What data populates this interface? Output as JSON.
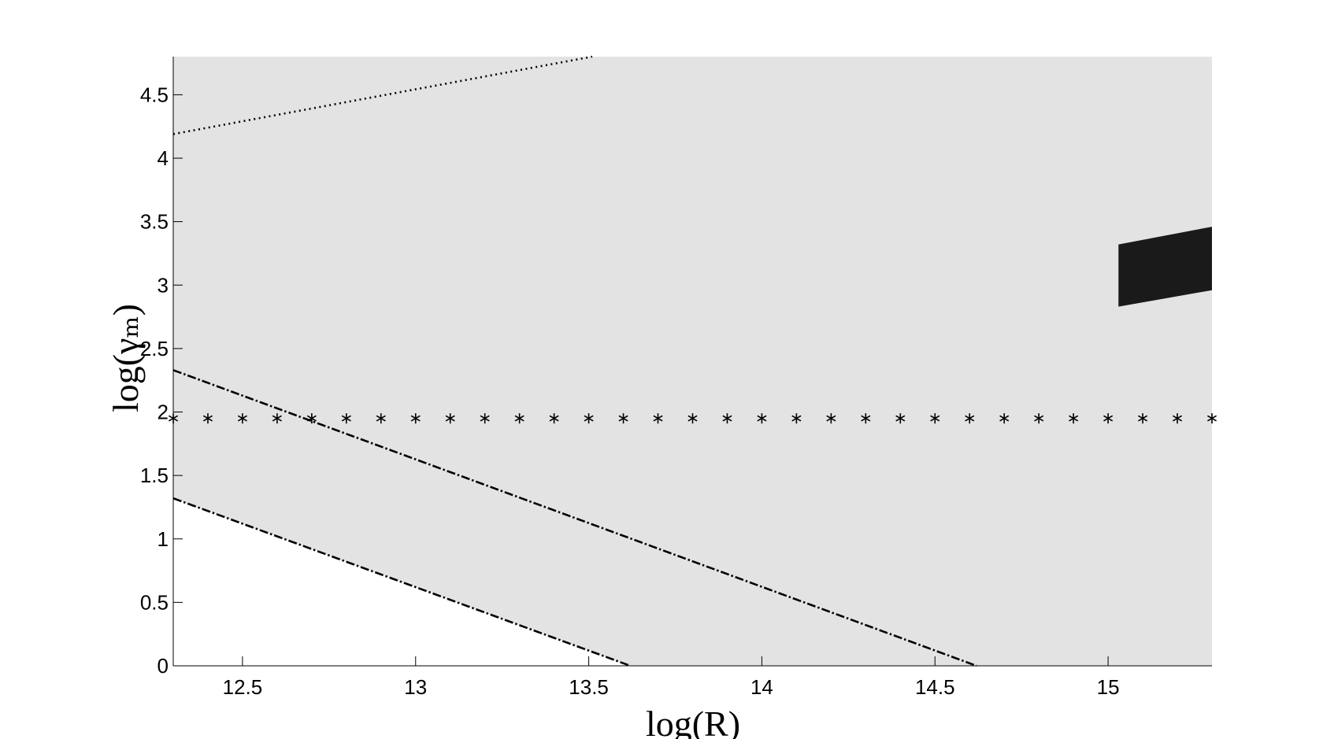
{
  "chart_data": {
    "type": "line",
    "x_label": "log(R)",
    "y_label": "log(γₘ)",
    "xlim": [
      12.3,
      15.3
    ],
    "ylim": [
      0,
      4.8
    ],
    "xticks": [
      12.5,
      13,
      13.5,
      14,
      14.5,
      15
    ],
    "yticks": [
      0,
      0.5,
      1,
      1.5,
      2,
      2.5,
      3,
      3.5,
      4,
      4.5
    ],
    "series": [
      {
        "style": "area",
        "color": "#e3e3e3",
        "x": [
          12.3,
          13.62,
          15.3,
          15.3,
          12.3
        ],
        "values": [
          1.32,
          0,
          0,
          4.8,
          4.8
        ]
      },
      {
        "style": "area",
        "color": "#1a1a1a",
        "x": [
          15.03,
          15.03,
          15.3,
          15.3
        ],
        "values": [
          2.83,
          3.32,
          3.46,
          2.96
        ]
      },
      {
        "style": "dotted",
        "color": "#000000",
        "x": [
          12.3,
          13.51
        ],
        "values": [
          4.19,
          4.8
        ]
      },
      {
        "style": "dashdot",
        "color": "#000000",
        "x": [
          12.3,
          14.62
        ],
        "values": [
          2.33,
          0
        ]
      },
      {
        "style": "dashdot",
        "color": "#000000",
        "x": [
          12.3,
          13.62
        ],
        "values": [
          1.32,
          0
        ]
      },
      {
        "style": "star",
        "color": "#000000",
        "x": [
          12.3,
          12.4,
          12.5,
          12.6,
          12.7,
          12.8,
          12.9,
          13.0,
          13.1,
          13.2,
          13.3,
          13.4,
          13.5,
          13.6,
          13.7,
          13.8,
          13.9,
          14.0,
          14.1,
          14.2,
          14.3,
          14.4,
          14.5,
          14.6,
          14.7,
          14.8,
          14.9,
          15.0,
          15.1,
          15.2,
          15.3
        ],
        "values": [
          1.95,
          1.95,
          1.95,
          1.95,
          1.95,
          1.95,
          1.95,
          1.95,
          1.95,
          1.95,
          1.95,
          1.95,
          1.95,
          1.95,
          1.95,
          1.95,
          1.95,
          1.95,
          1.95,
          1.95,
          1.95,
          1.95,
          1.95,
          1.95,
          1.95,
          1.95,
          1.95,
          1.95,
          1.95,
          1.95,
          1.95
        ]
      }
    ]
  }
}
